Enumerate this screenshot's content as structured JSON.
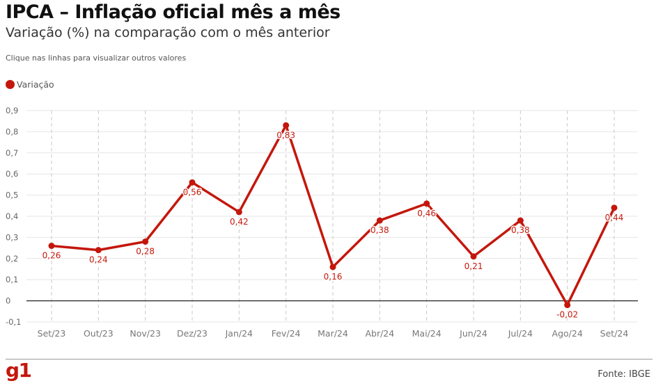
{
  "header": {
    "title": "IPCA – Inflação oficial mês a mês",
    "subtitle": "Variação (%) na comparação com o mês anterior",
    "hint": "Clique nas linhas para visualizar outros valores"
  },
  "legend": {
    "label": "Variação"
  },
  "footer": {
    "logo": "g1",
    "source": "Fonte: IBGE"
  },
  "colors": {
    "series": "#c4170c",
    "grid": "#e6e6e6",
    "zero_line": "#222222",
    "logo": "#c4170c"
  },
  "chart_data": {
    "type": "line",
    "categories": [
      "Set/23",
      "Out/23",
      "Nov/23",
      "Dez/23",
      "Jan/24",
      "Fev/24",
      "Mar/24",
      "Abr/24",
      "Mai/24",
      "Jun/24",
      "Jul/24",
      "Ago/24",
      "Set/24"
    ],
    "series": [
      {
        "name": "Variação",
        "values": [
          0.26,
          0.24,
          0.28,
          0.56,
          0.42,
          0.83,
          0.16,
          0.38,
          0.46,
          0.21,
          0.38,
          -0.02,
          0.44
        ]
      }
    ],
    "data_labels": [
      "0,26",
      "0,24",
      "0,28",
      "0,56",
      "0,42",
      "0,83",
      "0,16",
      "0,38",
      "0,46",
      "0,21",
      "0,38",
      "-0,02",
      "0,44"
    ],
    "y_ticks": [
      -0.1,
      0,
      0.1,
      0.2,
      0.3,
      0.4,
      0.5,
      0.6,
      0.7,
      0.8,
      0.9
    ],
    "y_tick_labels": [
      "-0,1",
      "0",
      "0,1",
      "0,2",
      "0,3",
      "0,4",
      "0,5",
      "0,6",
      "0,7",
      "0,8",
      "0,9"
    ],
    "ylim": [
      -0.1,
      0.9
    ],
    "grid": true,
    "legend_position": "top-left"
  }
}
